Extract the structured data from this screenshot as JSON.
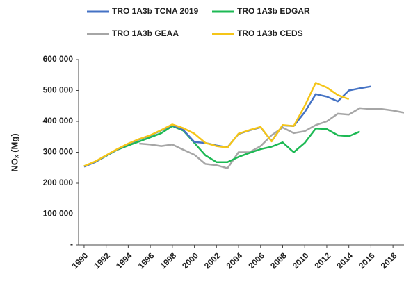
{
  "chart_data": {
    "type": "line",
    "y_label": "NOₓ (Mg)",
    "x": [
      1990,
      1991,
      1992,
      1993,
      1994,
      1995,
      1996,
      1997,
      1998,
      1999,
      2000,
      2001,
      2002,
      2003,
      2004,
      2005,
      2006,
      2007,
      2008,
      2009,
      2010,
      2011,
      2012,
      2013,
      2014,
      2015,
      2016,
      2017,
      2018,
      2019
    ],
    "xlim": [
      1989.5,
      2019
    ],
    "xticks": [
      1990,
      1992,
      1994,
      1996,
      1998,
      2000,
      2002,
      2004,
      2006,
      2008,
      2010,
      2012,
      2014,
      2016,
      2018
    ],
    "ylim": [
      0,
      600000
    ],
    "yticks": [
      {
        "value": 0,
        "label": "-"
      },
      {
        "value": 100000,
        "label": "100 000"
      },
      {
        "value": 200000,
        "label": "200 000"
      },
      {
        "value": 300000,
        "label": "300 000"
      },
      {
        "value": 400000,
        "label": "400 000"
      },
      {
        "value": 500000,
        "label": "500 000"
      },
      {
        "value": 600000,
        "label": "600 000"
      }
    ],
    "series": [
      {
        "name": "TRO 1A3b TCNA 2019",
        "color": "#4472c4",
        "values": [
          253000,
          268000,
          289000,
          309000,
          327000,
          342000,
          354000,
          371000,
          388000,
          372000,
          333000,
          330000,
          322000,
          316000,
          359000,
          371000,
          381000,
          336000,
          387000,
          385000,
          430000,
          488000,
          480000,
          465000,
          500000,
          507000,
          513000,
          null,
          null,
          null
        ]
      },
      {
        "name": "TRO 1A3b EDGAR",
        "color": "#1db954",
        "values": [
          255000,
          268000,
          288000,
          308000,
          322000,
          335000,
          348000,
          362000,
          385000,
          370000,
          330000,
          290000,
          268000,
          268000,
          285000,
          298000,
          310000,
          318000,
          332000,
          300000,
          330000,
          377000,
          375000,
          355000,
          352000,
          367000,
          null,
          null,
          null,
          null
        ]
      },
      {
        "name": "TRO 1A3b GEAA",
        "color": "#a6a6a6",
        "values": [
          null,
          null,
          null,
          null,
          null,
          328000,
          325000,
          320000,
          325000,
          308000,
          292000,
          262000,
          258000,
          248000,
          300000,
          300000,
          320000,
          355000,
          380000,
          362000,
          368000,
          388000,
          400000,
          425000,
          422000,
          443000,
          440000,
          440000,
          435000,
          428000
        ]
      },
      {
        "name": "TRO 1A3b CEDS",
        "color": "#f5c518",
        "values": [
          255000,
          270000,
          290000,
          310000,
          328000,
          343000,
          355000,
          372000,
          390000,
          378000,
          360000,
          330000,
          320000,
          315000,
          360000,
          372000,
          382000,
          335000,
          388000,
          385000,
          450000,
          525000,
          510000,
          485000,
          472000,
          null,
          null,
          null,
          null,
          null
        ]
      }
    ]
  }
}
